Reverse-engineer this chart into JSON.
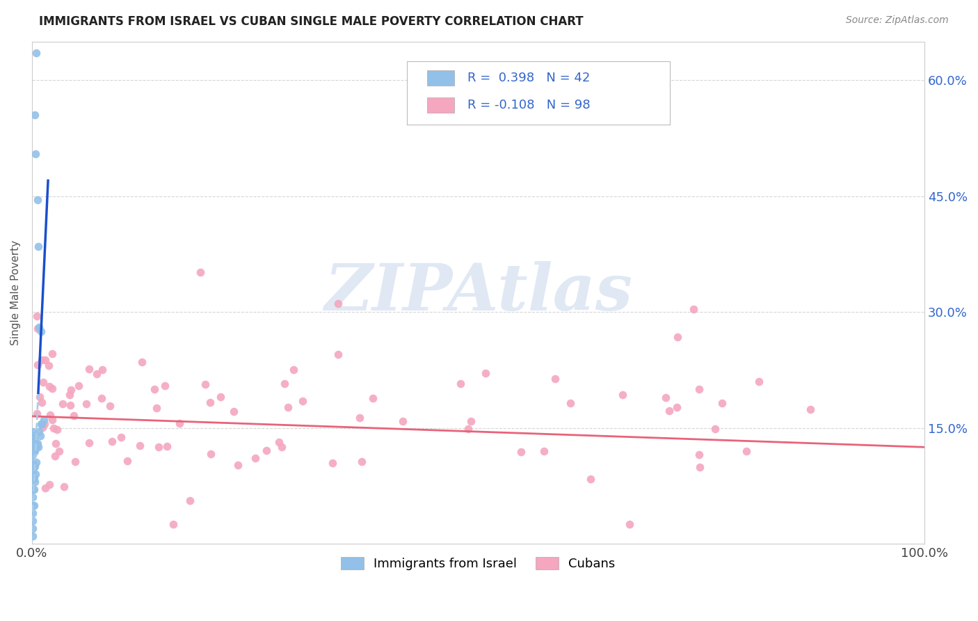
{
  "title": "IMMIGRANTS FROM ISRAEL VS CUBAN SINGLE MALE POVERTY CORRELATION CHART",
  "source": "Source: ZipAtlas.com",
  "ylabel": "Single Male Poverty",
  "legend_label1": "Immigrants from Israel",
  "legend_label2": "Cubans",
  "watermark": "ZIPAtlas",
  "blue_scatter_color": "#92c0e8",
  "pink_scatter_color": "#f4a7be",
  "blue_line_color": "#1a4fcc",
  "pink_line_color": "#e8637a",
  "blue_dashed_color": "#aacce8",
  "legend_text_color": "#3366cc",
  "ytick_color": "#3366cc",
  "ylabel_color": "#555555",
  "title_color": "#222222",
  "source_color": "#888888",
  "grid_color": "#cccccc",
  "bg_color": "#ffffff",
  "spine_color": "#cccccc",
  "ylim": [
    0.0,
    0.65
  ],
  "xlim": [
    0.0,
    1.0
  ],
  "yticks": [
    0.0,
    0.15,
    0.3,
    0.45,
    0.6
  ],
  "ytick_labels": [
    "",
    "15.0%",
    "30.0%",
    "45.0%",
    "60.0%"
  ]
}
